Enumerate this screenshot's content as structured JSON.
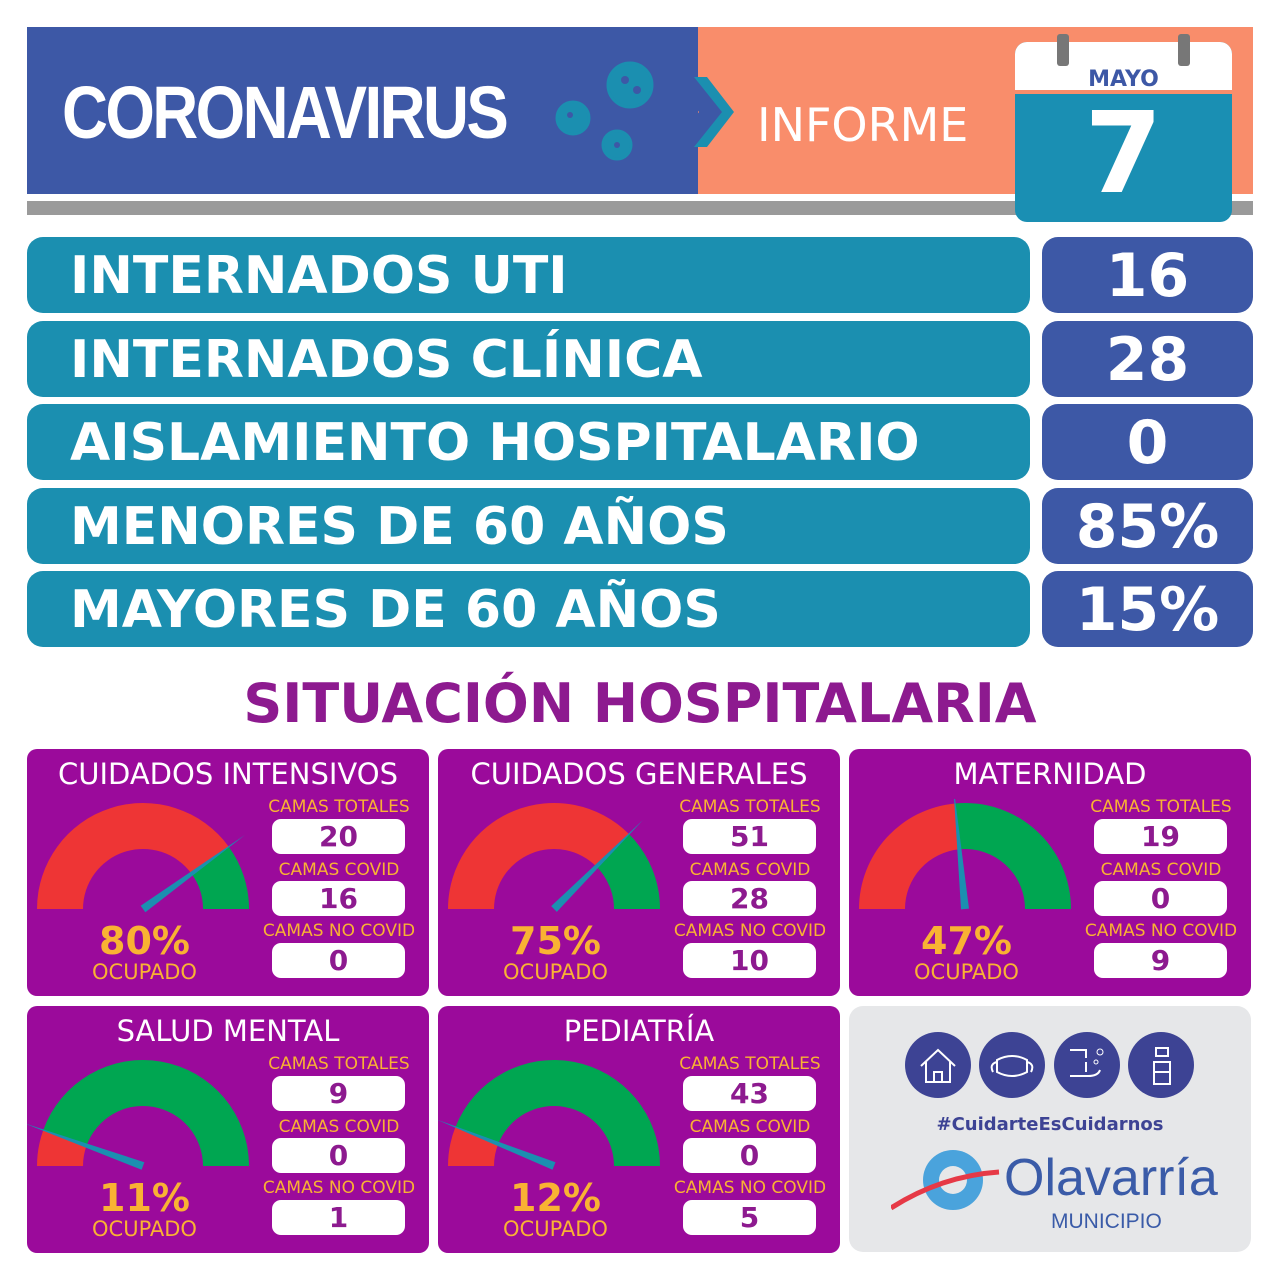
{
  "header": {
    "title": "CORONAVIRUS",
    "subtitle": "INFORME",
    "month": "MAYO",
    "day": "7",
    "colors": {
      "blue": "#3d58a6",
      "orange": "#f98d6b",
      "teal": "#1b8fb0"
    }
  },
  "stats": [
    {
      "label": "INTERNADOS UTI",
      "value": "16"
    },
    {
      "label": "INTERNADOS CLÍNICA",
      "value": "28"
    },
    {
      "label": "AISLAMIENTO HOSPITALARIO",
      "value": "0"
    },
    {
      "label": "MENORES DE 60 AÑOS",
      "value": "85%"
    },
    {
      "label": "MAYORES DE 60 AÑOS",
      "value": "15%"
    }
  ],
  "situacion": {
    "title": "SITUACIÓN HOSPITALARIA",
    "labels": {
      "totales": "CAMAS TOTALES",
      "covid": "CAMAS COVID",
      "nocovid": "CAMAS NO COVID",
      "ocupado": "OCUPADO"
    },
    "colors": {
      "panel": "#9b0a9b",
      "occupied": "#ee3535",
      "free": "#00a651",
      "needle": "#1b8fb0"
    },
    "panels": [
      {
        "name": "CUIDADOS INTENSIVOS",
        "totales": "20",
        "covid": "16",
        "nocovid": "0",
        "percent": "80%",
        "occupancy": 80
      },
      {
        "name": "CUIDADOS GENERALES",
        "totales": "51",
        "covid": "28",
        "nocovid": "10",
        "percent": "75%",
        "occupancy": 75
      },
      {
        "name": "MATERNIDAD",
        "totales": "19",
        "covid": "0",
        "nocovid": "9",
        "percent": "47%",
        "occupancy": 47
      },
      {
        "name": "SALUD MENTAL",
        "totales": "9",
        "covid": "0",
        "nocovid": "1",
        "percent": "11%",
        "occupancy": 11
      },
      {
        "name": "PEDIATRÍA",
        "totales": "43",
        "covid": "0",
        "nocovid": "5",
        "percent": "12%",
        "occupancy": 12
      }
    ]
  },
  "footer": {
    "icons": [
      "house-icon",
      "mask-icon",
      "handwash-icon",
      "sanitizer-spray-icon"
    ],
    "hashtag": "#CuidarteEsCuidarnos",
    "logo_name": "Olavarría",
    "logo_sub": "MUNICIPIO"
  }
}
